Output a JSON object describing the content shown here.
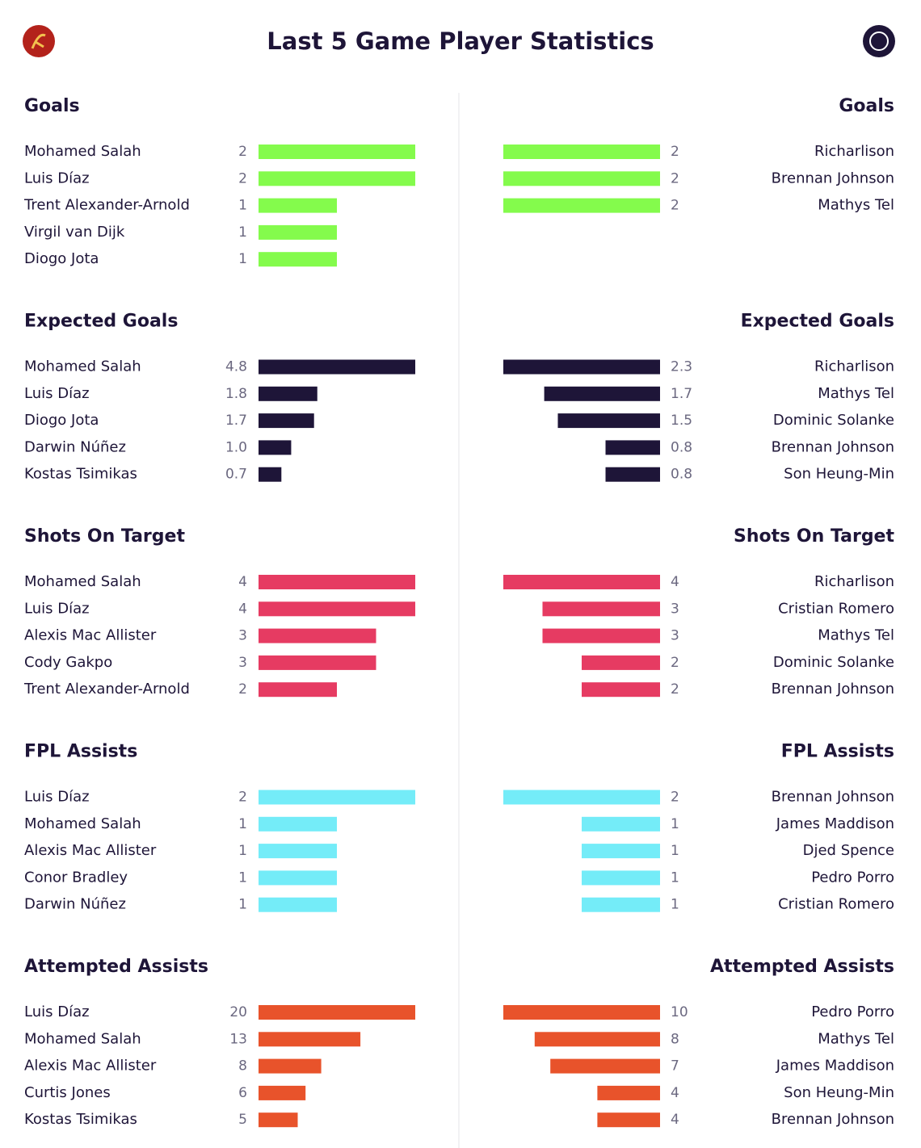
{
  "title": "Last 5 Game Player Statistics",
  "chart_data": [
    {
      "type": "bar",
      "title": "Goals",
      "color": "#84fb4c",
      "categories": [
        "Mohamed Salah",
        "Luis Díaz",
        "Trent Alexander-Arnold",
        "Virgil van Dijk",
        "Diogo Jota"
      ],
      "values": [
        2,
        2,
        1,
        1,
        1
      ]
    },
    {
      "type": "bar",
      "title": "Goals",
      "color": "#84fb4c",
      "categories": [
        "Richarlison",
        "Brennan Johnson",
        "Mathys Tel"
      ],
      "values": [
        2,
        2,
        2
      ]
    },
    {
      "type": "bar",
      "title": "Expected Goals",
      "color": "#1e1538",
      "categories": [
        "Mohamed Salah",
        "Luis Díaz",
        "Diogo Jota",
        "Darwin Núñez",
        "Kostas Tsimikas"
      ],
      "values": [
        4.8,
        1.8,
        1.7,
        1.0,
        0.7
      ],
      "value_labels": [
        "4.8",
        "1.8",
        "1.7",
        "1.0",
        "0.7"
      ]
    },
    {
      "type": "bar",
      "title": "Expected Goals",
      "color": "#1e1538",
      "categories": [
        "Richarlison",
        "Mathys Tel",
        "Dominic Solanke",
        "Brennan Johnson",
        "Son Heung-Min"
      ],
      "values": [
        2.3,
        1.7,
        1.5,
        0.8,
        0.8
      ]
    },
    {
      "type": "bar",
      "title": "Shots On Target",
      "color": "#e63b62",
      "categories": [
        "Mohamed Salah",
        "Luis Díaz",
        "Alexis Mac Allister",
        "Cody Gakpo",
        "Trent Alexander-Arnold"
      ],
      "values": [
        4,
        4,
        3,
        3,
        2
      ]
    },
    {
      "type": "bar",
      "title": "Shots On Target",
      "color": "#e63b62",
      "categories": [
        "Richarlison",
        "Cristian Romero",
        "Mathys Tel",
        "Dominic Solanke",
        "Brennan Johnson"
      ],
      "values": [
        4,
        3,
        3,
        2,
        2
      ]
    },
    {
      "type": "bar",
      "title": "FPL Assists",
      "color": "#74ecf8",
      "categories": [
        "Luis Díaz",
        "Mohamed Salah",
        "Alexis Mac Allister",
        "Conor Bradley",
        "Darwin Núñez"
      ],
      "values": [
        2,
        1,
        1,
        1,
        1
      ]
    },
    {
      "type": "bar",
      "title": "FPL Assists",
      "color": "#74ecf8",
      "categories": [
        "Brennan Johnson",
        "James Maddison",
        "Djed Spence",
        "Pedro Porro",
        "Cristian Romero"
      ],
      "values": [
        2,
        1,
        1,
        1,
        1
      ]
    },
    {
      "type": "bar",
      "title": "Attempted Assists",
      "color": "#e8532b",
      "categories": [
        "Luis Díaz",
        "Mohamed Salah",
        "Alexis Mac Allister",
        "Curtis Jones",
        "Kostas Tsimikas"
      ],
      "values": [
        20,
        13,
        8,
        6,
        5
      ]
    },
    {
      "type": "bar",
      "title": "Attempted Assists",
      "color": "#e8532b",
      "categories": [
        "Pedro Porro",
        "Mathys Tel",
        "James Maddison",
        "Son Heung-Min",
        "Brennan Johnson"
      ],
      "values": [
        10,
        8,
        7,
        4,
        4
      ]
    }
  ]
}
